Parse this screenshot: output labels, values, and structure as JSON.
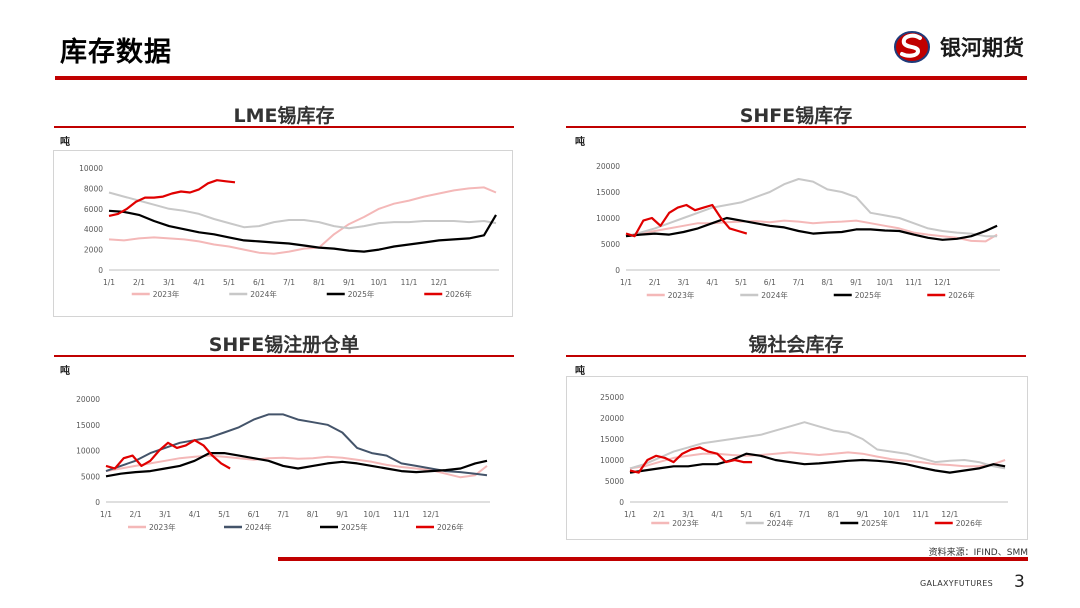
{
  "header": {
    "title": "库存数据",
    "brand_name": "银河期货"
  },
  "footer": {
    "source": "资料来源：IFIND、SMM",
    "brand_en": "GALAXYFUTURES",
    "page_number": "3"
  },
  "colors": {
    "accent": "#c00000",
    "s2023": "#f4b8b8",
    "s2024_light": "#c8c8c8",
    "s2024_dark": "#44546a",
    "s2025": "#000000",
    "s2026": "#e00000"
  },
  "icons": {
    "brand_logo": "galaxy-futures-logo-icon"
  },
  "chart_data": [
    {
      "type": "line",
      "title": "LME锡库存",
      "unit": "吨",
      "ylim": [
        0,
        10000
      ],
      "yticks": [
        0,
        2000,
        4000,
        6000,
        8000,
        10000
      ],
      "xticks": [
        "1/1",
        "2/1",
        "3/1",
        "4/1",
        "5/1",
        "6/1",
        "7/1",
        "8/1",
        "9/1",
        "10/1",
        "11/1",
        "12/1"
      ],
      "legend_position": "bottom",
      "series": [
        {
          "name": "2023年",
          "color": "#f4b8b8",
          "x": [
            0,
            0.5,
            1,
            1.5,
            2,
            2.5,
            3,
            3.5,
            4,
            4.5,
            5,
            5.5,
            6,
            6.5,
            7,
            7.5,
            8,
            8.5,
            9,
            9.5,
            10,
            10.5,
            11,
            11.5,
            12,
            12.5,
            12.9
          ],
          "values": [
            3000,
            2900,
            3100,
            3200,
            3100,
            3000,
            2800,
            2500,
            2300,
            2000,
            1700,
            1600,
            1800,
            2100,
            2200,
            3500,
            4500,
            5200,
            6000,
            6500,
            6800,
            7200,
            7500,
            7800,
            8000,
            8100,
            7600
          ]
        },
        {
          "name": "2024年",
          "color": "#c8c8c8",
          "x": [
            0,
            0.5,
            1,
            1.5,
            2,
            2.5,
            3,
            3.5,
            4,
            4.5,
            5,
            5.5,
            6,
            6.5,
            7,
            7.5,
            8,
            8.5,
            9,
            9.5,
            10,
            10.5,
            11,
            11.5,
            12,
            12.5,
            12.9
          ],
          "values": [
            7600,
            7200,
            6800,
            6400,
            6000,
            5800,
            5500,
            5000,
            4600,
            4200,
            4300,
            4700,
            4900,
            4900,
            4700,
            4300,
            4100,
            4300,
            4600,
            4700,
            4700,
            4800,
            4800,
            4800,
            4700,
            4800,
            4600
          ]
        },
        {
          "name": "2025年",
          "color": "#000000",
          "x": [
            0,
            0.5,
            1,
            1.5,
            2,
            2.5,
            3,
            3.5,
            4,
            4.5,
            5,
            5.5,
            6,
            6.5,
            7,
            7.5,
            8,
            8.5,
            9,
            9.5,
            10,
            10.5,
            11,
            11.5,
            12,
            12.5,
            12.9
          ],
          "values": [
            5800,
            5700,
            5400,
            4800,
            4300,
            4000,
            3700,
            3500,
            3200,
            2900,
            2800,
            2700,
            2600,
            2400,
            2200,
            2100,
            1900,
            1800,
            2000,
            2300,
            2500,
            2700,
            2900,
            3000,
            3100,
            3400,
            5400
          ]
        },
        {
          "name": "2026年",
          "color": "#e00000",
          "x": [
            0,
            0.3,
            0.6,
            0.9,
            1.2,
            1.5,
            1.8,
            2.1,
            2.4,
            2.7,
            3,
            3.3,
            3.6,
            3.9,
            4.2
          ],
          "values": [
            5300,
            5500,
            6000,
            6700,
            7100,
            7100,
            7200,
            7500,
            7700,
            7600,
            7900,
            8500,
            8800,
            8700,
            8600
          ]
        }
      ]
    },
    {
      "type": "line",
      "title": "SHFE锡库存",
      "unit": "吨",
      "ylim": [
        0,
        20000
      ],
      "yticks": [
        0,
        5000,
        10000,
        15000,
        20000
      ],
      "xticks": [
        "1/1",
        "2/1",
        "3/1",
        "4/1",
        "5/1",
        "6/1",
        "7/1",
        "8/1",
        "9/1",
        "10/1",
        "11/1",
        "12/1"
      ],
      "legend_position": "bottom",
      "series": [
        {
          "name": "2023年",
          "color": "#f4b8b8",
          "x": [
            0,
            0.5,
            1,
            1.5,
            2,
            2.5,
            3,
            3.5,
            4,
            4.5,
            5,
            5.5,
            6,
            6.5,
            7,
            7.5,
            8,
            8.5,
            9,
            9.5,
            10,
            10.5,
            11,
            11.5,
            12,
            12.5,
            12.9
          ],
          "values": [
            6500,
            7000,
            7500,
            8000,
            8500,
            9000,
            9000,
            9200,
            9300,
            9400,
            9200,
            9500,
            9300,
            9000,
            9200,
            9300,
            9500,
            9000,
            8500,
            8000,
            7200,
            6800,
            6500,
            6200,
            5600,
            5500,
            6800
          ]
        },
        {
          "name": "2024年",
          "color": "#c8c8c8",
          "x": [
            0,
            0.5,
            1,
            1.5,
            2,
            2.5,
            3,
            3.5,
            4,
            4.5,
            5,
            5.5,
            6,
            6.5,
            7,
            7.5,
            8,
            8.5,
            9,
            9.5,
            10,
            10.5,
            11,
            11.5,
            12,
            12.5,
            12.9
          ],
          "values": [
            6500,
            7200,
            8000,
            9000,
            10000,
            11000,
            12000,
            12500,
            13000,
            14000,
            15000,
            16500,
            17500,
            17000,
            15500,
            15000,
            14000,
            11000,
            10500,
            10000,
            9000,
            8000,
            7500,
            7200,
            7000,
            6500,
            6500
          ]
        },
        {
          "name": "2025年",
          "color": "#000000",
          "x": [
            0,
            0.5,
            1,
            1.5,
            2,
            2.5,
            3,
            3.5,
            4,
            4.5,
            5,
            5.5,
            6,
            6.5,
            7,
            7.5,
            8,
            8.5,
            9,
            9.5,
            10,
            10.5,
            11,
            11.5,
            12,
            12.5,
            12.9
          ],
          "values": [
            6500,
            6800,
            7000,
            6800,
            7300,
            8000,
            9000,
            10000,
            9500,
            9000,
            8500,
            8200,
            7500,
            7000,
            7200,
            7300,
            7800,
            7800,
            7600,
            7500,
            6800,
            6200,
            5800,
            6000,
            6500,
            7500,
            8500
          ]
        },
        {
          "name": "2026年",
          "color": "#e00000",
          "x": [
            0,
            0.3,
            0.6,
            0.9,
            1.2,
            1.5,
            1.8,
            2.1,
            2.4,
            2.7,
            3,
            3.3,
            3.6,
            3.9,
            4.2
          ],
          "values": [
            7000,
            6500,
            9500,
            10000,
            8500,
            11000,
            12000,
            12500,
            11500,
            12000,
            12500,
            10000,
            8000,
            7500,
            7000
          ]
        }
      ]
    },
    {
      "type": "line",
      "title": "SHFE锡注册仓单",
      "unit": "吨",
      "ylim": [
        0,
        20000
      ],
      "yticks": [
        0,
        5000,
        10000,
        15000,
        20000
      ],
      "xticks": [
        "1/1",
        "2/1",
        "3/1",
        "4/1",
        "5/1",
        "6/1",
        "7/1",
        "8/1",
        "9/1",
        "10/1",
        "11/1",
        "12/1"
      ],
      "legend_position": "bottom",
      "series": [
        {
          "name": "2023年",
          "color": "#f4b8b8",
          "x": [
            0,
            0.5,
            1,
            1.5,
            2,
            2.5,
            3,
            3.5,
            4,
            4.5,
            5,
            5.5,
            6,
            6.5,
            7,
            7.5,
            8,
            8.5,
            9,
            9.5,
            10,
            10.5,
            11,
            11.5,
            12,
            12.5,
            12.9
          ],
          "values": [
            6000,
            6500,
            7000,
            7500,
            8000,
            8500,
            8800,
            9000,
            8800,
            8500,
            8200,
            8500,
            8600,
            8400,
            8500,
            8800,
            8600,
            8200,
            7800,
            7200,
            6800,
            6500,
            6200,
            5500,
            4800,
            5200,
            7000
          ]
        },
        {
          "name": "2024年",
          "color": "#44546a",
          "x": [
            0,
            0.5,
            1,
            1.5,
            2,
            2.5,
            3,
            3.5,
            4,
            4.5,
            5,
            5.5,
            6,
            6.5,
            7,
            7.5,
            8,
            8.5,
            9,
            9.5,
            10,
            10.5,
            11,
            11.5,
            12,
            12.5,
            12.9
          ],
          "values": [
            6000,
            7000,
            8000,
            9500,
            10500,
            11500,
            12000,
            12500,
            13500,
            14500,
            16000,
            17000,
            17000,
            16000,
            15500,
            15000,
            13500,
            10500,
            9500,
            9000,
            7500,
            7000,
            6500,
            6000,
            5800,
            5500,
            5200
          ]
        },
        {
          "name": "2025年",
          "color": "#000000",
          "x": [
            0,
            0.5,
            1,
            1.5,
            2,
            2.5,
            3,
            3.5,
            4,
            4.5,
            5,
            5.5,
            6,
            6.5,
            7,
            7.5,
            8,
            8.5,
            9,
            9.5,
            10,
            10.5,
            11,
            11.5,
            12,
            12.5,
            12.9
          ],
          "values": [
            5000,
            5500,
            5800,
            6000,
            6500,
            7000,
            8000,
            9500,
            9500,
            9000,
            8500,
            8000,
            7000,
            6500,
            7000,
            7500,
            7800,
            7500,
            7000,
            6500,
            6000,
            5800,
            6000,
            6200,
            6500,
            7500,
            8000
          ]
        },
        {
          "name": "2026年",
          "color": "#e00000",
          "x": [
            0,
            0.3,
            0.6,
            0.9,
            1.2,
            1.5,
            1.8,
            2.1,
            2.4,
            2.7,
            3,
            3.3,
            3.6,
            3.9,
            4.2
          ],
          "values": [
            7000,
            6500,
            8500,
            9000,
            7000,
            8000,
            10000,
            11500,
            10500,
            11000,
            12000,
            11000,
            9000,
            7500,
            6500
          ]
        }
      ]
    },
    {
      "type": "line",
      "title": "锡社会库存",
      "unit": "吨",
      "ylim": [
        0,
        25000
      ],
      "yticks": [
        0,
        5000,
        10000,
        15000,
        20000,
        25000
      ],
      "xticks": [
        "1/1",
        "2/1",
        "3/1",
        "4/1",
        "5/1",
        "6/1",
        "7/1",
        "8/1",
        "9/1",
        "10/1",
        "11/1",
        "12/1"
      ],
      "legend_position": "bottom",
      "series": [
        {
          "name": "2023年",
          "color": "#f4b8b8",
          "x": [
            0,
            0.5,
            1,
            1.5,
            2,
            2.5,
            3,
            3.5,
            4,
            4.5,
            5,
            5.5,
            6,
            6.5,
            7,
            7.5,
            8,
            8.5,
            9,
            9.5,
            10,
            10.5,
            11,
            11.5,
            12,
            12.5,
            12.9
          ],
          "values": [
            8000,
            8500,
            9500,
            10500,
            11000,
            11500,
            11500,
            11200,
            11000,
            11200,
            11500,
            11800,
            11500,
            11200,
            11500,
            11800,
            11500,
            10800,
            10200,
            9800,
            9500,
            9000,
            8800,
            8500,
            8500,
            9000,
            10000
          ]
        },
        {
          "name": "2024年",
          "color": "#c8c8c8",
          "x": [
            0,
            0.5,
            1,
            1.5,
            2,
            2.5,
            3,
            3.5,
            4,
            4.5,
            5,
            5.5,
            6,
            6.5,
            7,
            7.5,
            8,
            8.5,
            9,
            9.5,
            10,
            10.5,
            11,
            11.5,
            12,
            12.5,
            12.9
          ],
          "values": [
            8000,
            9000,
            10500,
            12000,
            13000,
            14000,
            14500,
            15000,
            15500,
            16000,
            17000,
            18000,
            19000,
            18000,
            17000,
            16500,
            15000,
            12500,
            12000,
            11500,
            10500,
            9500,
            9800,
            10000,
            9500,
            8500,
            8000
          ]
        },
        {
          "name": "2025年",
          "color": "#000000",
          "x": [
            0,
            0.5,
            1,
            1.5,
            2,
            2.5,
            3,
            3.5,
            4,
            4.5,
            5,
            5.5,
            6,
            6.5,
            7,
            7.5,
            8,
            8.5,
            9,
            9.5,
            10,
            10.5,
            11,
            11.5,
            12,
            12.5,
            12.9
          ],
          "values": [
            7000,
            7500,
            8000,
            8500,
            8500,
            9000,
            9000,
            10000,
            11500,
            11000,
            10000,
            9500,
            9000,
            9200,
            9500,
            9800,
            10000,
            9800,
            9500,
            9000,
            8200,
            7500,
            7000,
            7500,
            8000,
            9000,
            8500
          ]
        },
        {
          "name": "2026年",
          "color": "#e00000",
          "x": [
            0,
            0.3,
            0.6,
            0.9,
            1.2,
            1.5,
            1.8,
            2.1,
            2.4,
            2.7,
            3,
            3.3,
            3.6,
            3.9,
            4.2
          ],
          "values": [
            7500,
            7000,
            10000,
            11000,
            10500,
            9500,
            11500,
            12500,
            13000,
            12000,
            11500,
            9500,
            10000,
            9500,
            9500
          ]
        }
      ]
    }
  ]
}
